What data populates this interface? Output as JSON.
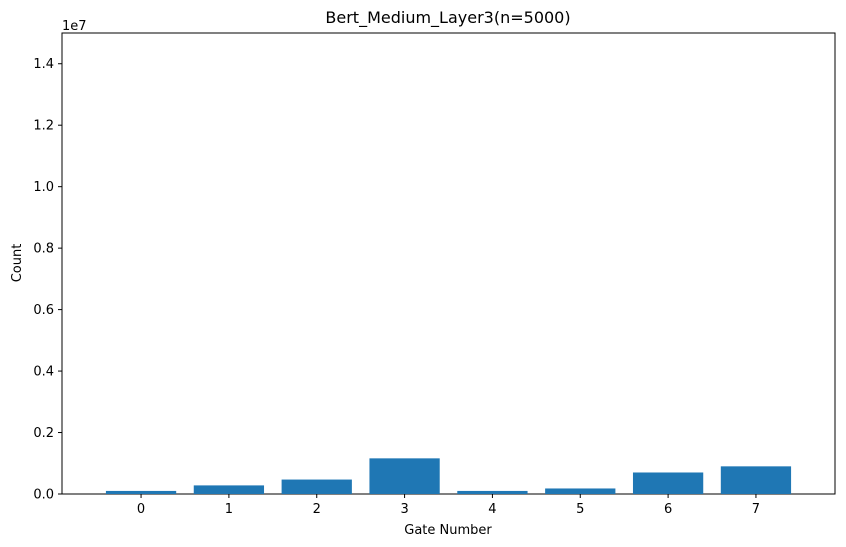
{
  "chart_data": {
    "type": "bar",
    "title": "Bert_Medium_Layer3(n=5000)",
    "xlabel": "Gate Number",
    "ylabel": "Count",
    "y_offset_label": "1e7",
    "categories": [
      "0",
      "1",
      "2",
      "3",
      "4",
      "5",
      "6",
      "7"
    ],
    "values": [
      100000,
      280000,
      470000,
      1160000,
      100000,
      180000,
      700000,
      900000
    ],
    "ylim": [
      0,
      15000000
    ],
    "y_ticks": [
      0,
      2000000,
      4000000,
      6000000,
      8000000,
      10000000,
      12000000,
      14000000
    ],
    "y_tick_labels": [
      "0.0",
      "0.2",
      "0.4",
      "0.6",
      "0.8",
      "1.0",
      "1.2",
      "1.4"
    ],
    "bar_color": "#1f77b4",
    "grid": false,
    "legend": "none"
  }
}
